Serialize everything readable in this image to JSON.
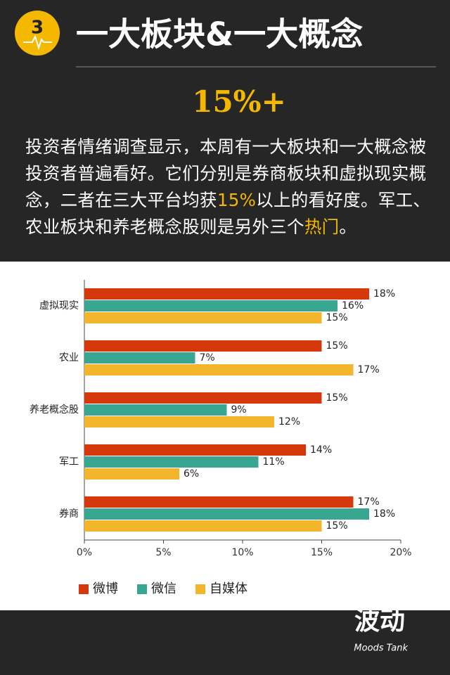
{
  "header": {
    "badge": "3",
    "title": "一大板块&一大概念",
    "headline": "15%+",
    "paragraph": [
      {
        "text": "投资者情绪调查显示，本周有一大板块和一大概念被投资者普遍看好。它们分别是券商板块和虚拟现实概念，二者在三大平台均获",
        "color": "#ffffff"
      },
      {
        "text": "15%",
        "color": "#f5b800"
      },
      {
        "text": "以上的看好度。军工、农业板块和养老概念股则是另外三个",
        "color": "#ffffff"
      },
      {
        "text": "热门",
        "color": "#f5b800"
      },
      {
        "text": "。",
        "color": "#ffffff"
      }
    ]
  },
  "chart_data": {
    "type": "hbar",
    "categories": [
      "虚拟现实",
      "农业",
      "养老概念股",
      "军工",
      "券商"
    ],
    "series": [
      {
        "name": "微博",
        "color": "#d4380b",
        "values": [
          18,
          15,
          15,
          14,
          17
        ],
        "value_labels": [
          "18%",
          "15%",
          "15%",
          "14%",
          "17%"
        ]
      },
      {
        "name": "微信",
        "color": "#38a690",
        "values": [
          16,
          7,
          9,
          11,
          18
        ],
        "value_labels": [
          "16%",
          "7%",
          "9%",
          "11%",
          "18%"
        ]
      },
      {
        "name": "自媒体",
        "color": "#f2b52b",
        "values": [
          15,
          17,
          12,
          6,
          15
        ],
        "value_labels": [
          "15%",
          "17%",
          "12%",
          "6%",
          "15%"
        ]
      }
    ],
    "xlim": [
      0,
      20
    ],
    "xticks": [
      {
        "value": 0,
        "label": "0%"
      },
      {
        "value": 5,
        "label": "5%"
      },
      {
        "value": 10,
        "label": "10%"
      },
      {
        "value": 15,
        "label": "15%"
      },
      {
        "value": 20,
        "label": "20%"
      }
    ],
    "legend": "bottom"
  },
  "footer": {
    "logo": "波动",
    "logo_sub": "Moods Tank"
  }
}
